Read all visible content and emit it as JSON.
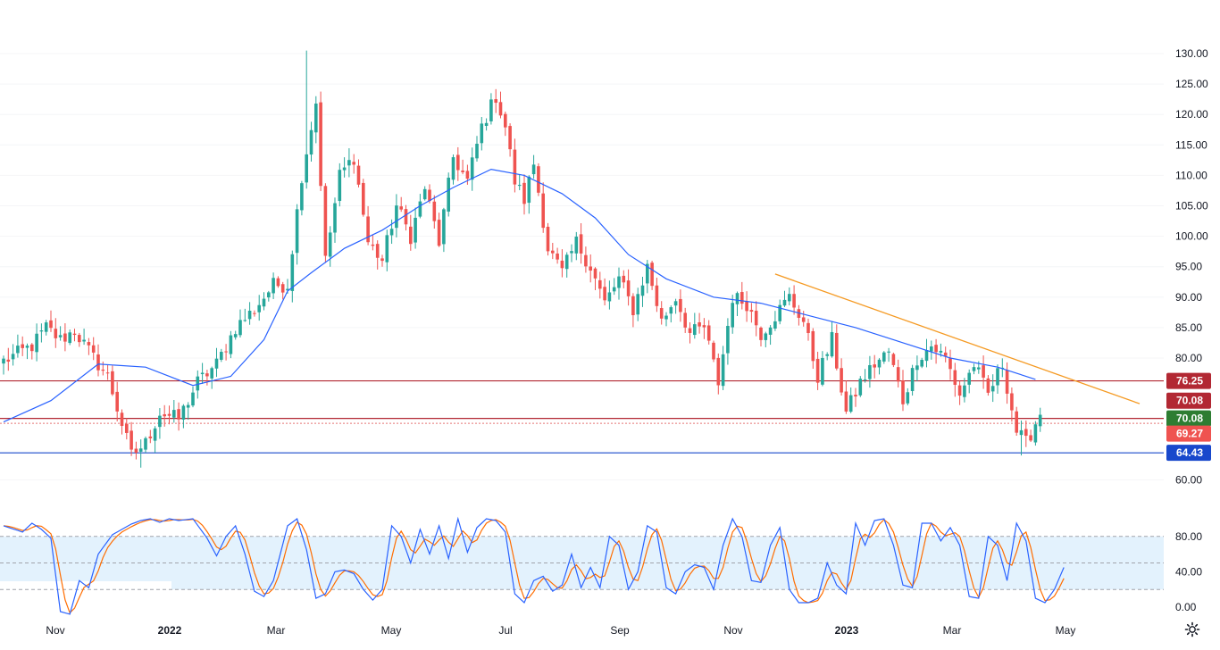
{
  "chart_data": [
    {
      "type": "candlestick",
      "colors": {
        "up": "#26a69a",
        "down": "#ef5350",
        "ma": "#2962ff",
        "trendline": "#f59a23"
      },
      "x_labels": [
        {
          "label": "Nov",
          "year": false
        },
        {
          "label": "2022",
          "year": true
        },
        {
          "label": "Mar",
          "year": false
        },
        {
          "label": "May",
          "year": false
        },
        {
          "label": "Jul",
          "year": false
        },
        {
          "label": "Sep",
          "year": false
        },
        {
          "label": "Nov",
          "year": false
        },
        {
          "label": "2023",
          "year": true
        },
        {
          "label": "Mar",
          "year": false
        },
        {
          "label": "May",
          "year": false
        }
      ],
      "y_ticks": [
        "130.00",
        "125.00",
        "120.00",
        "115.00",
        "110.00",
        "105.00",
        "100.00",
        "95.00",
        "90.00",
        "85.00",
        "80.00",
        "60.00"
      ],
      "ylim": [
        56,
        133
      ],
      "close_anchors": [
        [
          0,
          79.5
        ],
        [
          6,
          82
        ],
        [
          9,
          85
        ],
        [
          12,
          83
        ],
        [
          15,
          84.5
        ],
        [
          19,
          80
        ],
        [
          22,
          77
        ],
        [
          27,
          64
        ],
        [
          30,
          66
        ],
        [
          33,
          71
        ],
        [
          37,
          70
        ],
        [
          41,
          76
        ],
        [
          45,
          79
        ],
        [
          49,
          85
        ],
        [
          53,
          88
        ],
        [
          57,
          92
        ],
        [
          60,
          92
        ],
        [
          63,
          110
        ],
        [
          66,
          122
        ],
        [
          68,
          96
        ],
        [
          71,
          110
        ],
        [
          74,
          113
        ],
        [
          77,
          99
        ],
        [
          80,
          96
        ],
        [
          83,
          105
        ],
        [
          86,
          100
        ],
        [
          89,
          108
        ],
        [
          92,
          99
        ],
        [
          95,
          113
        ],
        [
          98,
          109
        ],
        [
          101,
          118
        ],
        [
          104,
          123
        ],
        [
          106,
          118
        ],
        [
          108,
          109
        ],
        [
          110,
          106
        ],
        [
          112,
          112
        ],
        [
          115,
          98
        ],
        [
          118,
          94
        ],
        [
          121,
          99
        ],
        [
          124,
          95
        ],
        [
          127,
          89
        ],
        [
          130,
          93
        ],
        [
          133,
          88
        ],
        [
          136,
          95
        ],
        [
          139,
          86
        ],
        [
          142,
          90
        ],
        [
          145,
          84
        ],
        [
          148,
          85
        ],
        [
          151,
          76
        ],
        [
          154,
          90
        ],
        [
          157,
          89
        ],
        [
          160,
          84
        ],
        [
          163,
          87
        ],
        [
          166,
          90
        ],
        [
          169,
          86
        ],
        [
          172,
          77
        ],
        [
          175,
          83
        ],
        [
          178,
          71
        ],
        [
          181,
          76
        ],
        [
          184,
          79
        ],
        [
          187,
          81
        ],
        [
          190,
          73
        ],
        [
          193,
          80
        ],
        [
          196,
          82
        ],
        [
          199,
          80
        ],
        [
          202,
          74
        ],
        [
          205,
          79
        ],
        [
          208,
          74
        ],
        [
          211,
          79
        ],
        [
          214,
          68
        ],
        [
          216,
          66
        ],
        [
          219,
          71
        ]
      ],
      "wick_extremes": [
        {
          "index": 64,
          "high": 130.5
        },
        {
          "index": 103,
          "high": 123.5
        },
        {
          "index": 29,
          "low": 62
        },
        {
          "index": 215,
          "low": 64
        }
      ],
      "moving_average": [
        [
          0,
          69.5
        ],
        [
          10,
          73
        ],
        [
          20,
          79
        ],
        [
          30,
          78.5
        ],
        [
          40,
          75.5
        ],
        [
          48,
          77
        ],
        [
          55,
          83
        ],
        [
          60,
          91
        ],
        [
          65,
          94
        ],
        [
          72,
          98
        ],
        [
          80,
          101
        ],
        [
          88,
          105
        ],
        [
          95,
          108
        ],
        [
          103,
          111
        ],
        [
          110,
          110
        ],
        [
          118,
          107
        ],
        [
          125,
          103
        ],
        [
          132,
          97
        ],
        [
          140,
          93
        ],
        [
          150,
          90
        ],
        [
          160,
          89
        ],
        [
          170,
          87
        ],
        [
          180,
          85
        ],
        [
          190,
          82.5
        ],
        [
          200,
          80
        ],
        [
          210,
          78.5
        ],
        [
          218,
          76.5
        ]
      ],
      "trendline": {
        "from": [
          163,
          93.8
        ],
        "to": [
          240,
          72.5
        ]
      },
      "horizontal_lines": [
        {
          "price": 76.25,
          "color": "#b22833",
          "style": "solid"
        },
        {
          "price": 70.08,
          "color": "#b22833",
          "style": "solid"
        },
        {
          "price": 69.27,
          "color": "#e57373",
          "style": "dotted"
        },
        {
          "price": 64.43,
          "color": "#1848cc",
          "style": "solid"
        }
      ],
      "price_badges": [
        {
          "label": "76.25",
          "price": 76.25,
          "color": "#b22833"
        },
        {
          "label": "70.08",
          "price": 73.0,
          "color": "#b22833"
        },
        {
          "label": "70.08",
          "price": 70.08,
          "color": "#2e7d32"
        },
        {
          "label": "69.27",
          "price": 67.6,
          "color": "#ef5350"
        },
        {
          "label": "64.43",
          "price": 64.43,
          "color": "#1848cc"
        }
      ]
    },
    {
      "type": "line",
      "name": "stochastic",
      "y_ticks": [
        "80.00",
        "40.00",
        "0.00"
      ],
      "ylim": [
        -10,
        110
      ],
      "band": [
        20,
        80
      ],
      "levels": [
        80,
        50,
        20
      ],
      "colors": {
        "k": "#2962ff",
        "d": "#ff6d00",
        "band": "#e3f2fd"
      },
      "k_values": [
        [
          0,
          92
        ],
        [
          4,
          85
        ],
        [
          6,
          95
        ],
        [
          8,
          88
        ],
        [
          10,
          78
        ],
        [
          12,
          -5
        ],
        [
          14,
          -8
        ],
        [
          16,
          30
        ],
        [
          18,
          22
        ],
        [
          20,
          60
        ],
        [
          23,
          82
        ],
        [
          27,
          94
        ],
        [
          29,
          98
        ],
        [
          31,
          100
        ],
        [
          33,
          96
        ],
        [
          35,
          100
        ],
        [
          37,
          98
        ],
        [
          40,
          100
        ],
        [
          43,
          78
        ],
        [
          45,
          58
        ],
        [
          47,
          80
        ],
        [
          49,
          92
        ],
        [
          51,
          60
        ],
        [
          53,
          18
        ],
        [
          55,
          12
        ],
        [
          57,
          30
        ],
        [
          60,
          92
        ],
        [
          62,
          100
        ],
        [
          64,
          65
        ],
        [
          66,
          10
        ],
        [
          68,
          15
        ],
        [
          70,
          40
        ],
        [
          72,
          42
        ],
        [
          74,
          38
        ],
        [
          76,
          20
        ],
        [
          78,
          8
        ],
        [
          80,
          20
        ],
        [
          82,
          92
        ],
        [
          84,
          80
        ],
        [
          86,
          50
        ],
        [
          88,
          88
        ],
        [
          90,
          60
        ],
        [
          92,
          92
        ],
        [
          94,
          55
        ],
        [
          96,
          100
        ],
        [
          98,
          62
        ],
        [
          100,
          90
        ],
        [
          102,
          100
        ],
        [
          104,
          98
        ],
        [
          106,
          85
        ],
        [
          108,
          15
        ],
        [
          110,
          5
        ],
        [
          112,
          30
        ],
        [
          114,
          35
        ],
        [
          116,
          18
        ],
        [
          118,
          25
        ],
        [
          120,
          60
        ],
        [
          122,
          22
        ],
        [
          124,
          45
        ],
        [
          126,
          22
        ],
        [
          128,
          80
        ],
        [
          130,
          70
        ],
        [
          132,
          20
        ],
        [
          134,
          40
        ],
        [
          136,
          92
        ],
        [
          138,
          85
        ],
        [
          140,
          22
        ],
        [
          142,
          15
        ],
        [
          144,
          40
        ],
        [
          146,
          48
        ],
        [
          148,
          45
        ],
        [
          150,
          20
        ],
        [
          152,
          70
        ],
        [
          154,
          100
        ],
        [
          156,
          80
        ],
        [
          158,
          30
        ],
        [
          160,
          28
        ],
        [
          162,
          70
        ],
        [
          164,
          90
        ],
        [
          166,
          20
        ],
        [
          168,
          5
        ],
        [
          170,
          5
        ],
        [
          172,
          10
        ],
        [
          174,
          50
        ],
        [
          176,
          25
        ],
        [
          178,
          15
        ],
        [
          180,
          95
        ],
        [
          182,
          70
        ],
        [
          184,
          98
        ],
        [
          186,
          100
        ],
        [
          188,
          70
        ],
        [
          190,
          25
        ],
        [
          192,
          22
        ],
        [
          194,
          95
        ],
        [
          196,
          95
        ],
        [
          198,
          75
        ],
        [
          200,
          90
        ],
        [
          202,
          70
        ],
        [
          204,
          12
        ],
        [
          206,
          10
        ],
        [
          208,
          80
        ],
        [
          210,
          70
        ],
        [
          212,
          30
        ],
        [
          214,
          95
        ],
        [
          216,
          75
        ],
        [
          218,
          10
        ],
        [
          220,
          5
        ],
        [
          222,
          20
        ],
        [
          224,
          45
        ]
      ]
    }
  ]
}
